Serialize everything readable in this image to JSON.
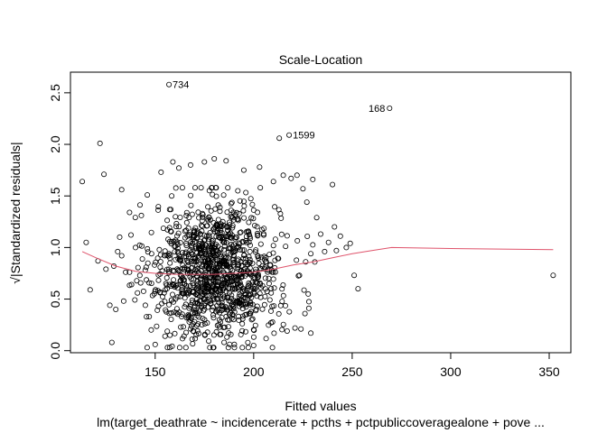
{
  "chart_data": {
    "type": "scatter",
    "title": "Scale-Location",
    "xlabel": "Fitted values",
    "ylabel": "√|Standardized residuals|",
    "subtitle": "lm(target_deathrate ~ incidencerate + pcths + pctpubliccoveragealone + pove ...",
    "xlim": [
      107,
      361
    ],
    "ylim": [
      -0.02,
      2.7
    ],
    "x_ticks": [
      150,
      200,
      250,
      300,
      350
    ],
    "y_ticks": [
      0.0,
      0.5,
      1.0,
      1.5,
      2.0,
      2.5
    ],
    "x_tick_labels": [
      "150",
      "200",
      "250",
      "300",
      "350"
    ],
    "y_tick_labels": [
      "0.0",
      "0.5",
      "1.0",
      "1.5",
      "2.0",
      "2.5"
    ],
    "grid": false,
    "point_color": "#000000",
    "smooth_color": "#df536b",
    "labeled_points": [
      {
        "label": "734",
        "x": 157,
        "y": 2.58
      },
      {
        "label": "168",
        "x": 269,
        "y": 2.35
      },
      {
        "label": "1599",
        "x": 218,
        "y": 2.09
      }
    ],
    "outlying_points": [
      [
        113,
        1.64
      ],
      [
        115,
        1.05
      ],
      [
        117,
        0.59
      ],
      [
        121,
        0.87
      ],
      [
        122,
        2.01
      ],
      [
        124,
        1.71
      ],
      [
        125,
        0.79
      ],
      [
        127,
        0.44
      ],
      [
        128,
        0.08
      ],
      [
        129,
        0.82
      ],
      [
        130,
        0.4
      ],
      [
        131,
        0.96
      ],
      [
        132,
        1.1
      ],
      [
        133,
        0.92
      ],
      [
        133,
        1.56
      ],
      [
        134,
        0.48
      ],
      [
        135,
        0.76
      ],
      [
        137,
        1.34
      ],
      [
        138,
        0.64
      ],
      [
        140,
        1.0
      ],
      [
        141,
        0.56
      ],
      [
        143,
        1.31
      ],
      [
        145,
        0.44
      ],
      [
        146,
        1.51
      ],
      [
        147,
        0.33
      ],
      [
        148,
        0.2
      ],
      [
        150,
        0.06
      ],
      [
        153,
        1.73
      ],
      [
        155,
        0.14
      ],
      [
        159,
        1.83
      ],
      [
        162,
        1.77
      ],
      [
        168,
        1.8
      ],
      [
        175,
        1.83
      ],
      [
        180,
        1.86
      ],
      [
        186,
        1.84
      ],
      [
        195,
        1.75
      ],
      [
        200,
        0.05
      ],
      [
        203,
        1.78
      ],
      [
        210,
        1.64
      ],
      [
        213,
        2.06
      ],
      [
        215,
        1.7
      ],
      [
        217,
        0.19
      ],
      [
        219,
        1.67
      ],
      [
        221,
        0.22
      ],
      [
        222,
        1.7
      ],
      [
        224,
        0.21
      ],
      [
        225,
        1.57
      ],
      [
        226,
        0.36
      ],
      [
        227,
        1.44
      ],
      [
        228,
        0.41
      ],
      [
        229,
        0.94
      ],
      [
        229,
        0.17
      ],
      [
        230,
        1.66
      ],
      [
        231,
        0.86
      ],
      [
        232,
        1.29
      ],
      [
        234,
        1.13
      ],
      [
        236,
        0.96
      ],
      [
        238,
        1.05
      ],
      [
        240,
        1.61
      ],
      [
        241,
        1.2
      ],
      [
        242,
        0.97
      ],
      [
        244,
        1.11
      ],
      [
        247,
        1.0
      ],
      [
        249,
        1.04
      ],
      [
        251,
        0.73
      ],
      [
        253,
        0.6
      ],
      [
        352,
        0.73
      ]
    ],
    "bulk": {
      "count": 1150,
      "x_mean": 181,
      "x_sd": 16,
      "x_range": [
        137,
        230
      ],
      "y_mean": 0.77,
      "y_sd": 0.33,
      "y_range": [
        0.03,
        1.58
      ]
    },
    "smooth_line": [
      [
        113,
        0.96
      ],
      [
        120,
        0.9
      ],
      [
        130,
        0.82
      ],
      [
        140,
        0.77
      ],
      [
        150,
        0.75
      ],
      [
        160,
        0.74
      ],
      [
        170,
        0.74
      ],
      [
        180,
        0.74
      ],
      [
        190,
        0.75
      ],
      [
        200,
        0.76
      ],
      [
        210,
        0.79
      ],
      [
        220,
        0.83
      ],
      [
        230,
        0.86
      ],
      [
        240,
        0.9
      ],
      [
        250,
        0.94
      ],
      [
        260,
        0.97
      ],
      [
        270,
        1.0
      ],
      [
        300,
        0.99
      ],
      [
        352,
        0.98
      ]
    ]
  }
}
